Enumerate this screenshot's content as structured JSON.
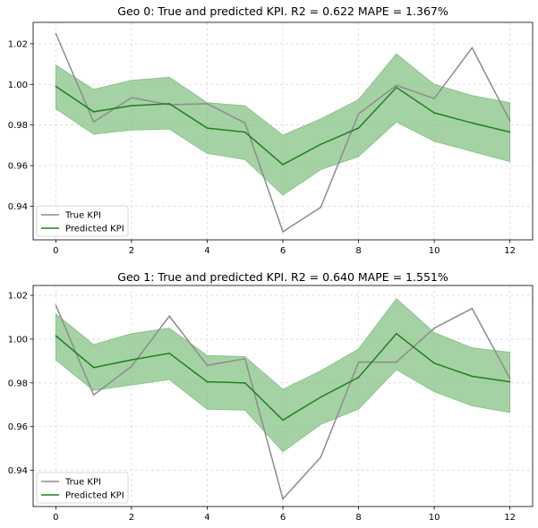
{
  "chart_data": [
    {
      "type": "line",
      "title": "Geo 0: True and predicted KPI. R2 = 0.622 MAPE = 1.367%",
      "xlabel": "",
      "ylabel": "",
      "x": [
        0,
        1,
        2,
        3,
        4,
        5,
        6,
        7,
        8,
        9,
        10,
        11,
        12
      ],
      "xlim": [
        -0.6,
        12.6
      ],
      "ylim": [
        0.9235,
        1.0305
      ],
      "xticks": [
        0,
        2,
        4,
        6,
        8,
        10,
        12
      ],
      "yticks": [
        0.94,
        0.96,
        0.98,
        1.0,
        1.02
      ],
      "ytick_labels": [
        "0.94",
        "0.96",
        "0.98",
        "1.00",
        "1.02"
      ],
      "grid": true,
      "legend_position": "lower-left",
      "series": [
        {
          "name": "True KPI",
          "color": "#8c8c8c",
          "values": [
            1.025,
            0.9815,
            0.9935,
            0.99,
            0.9905,
            0.981,
            0.9275,
            0.9395,
            0.9855,
            0.9995,
            0.993,
            1.018,
            0.982
          ]
        },
        {
          "name": "Predicted KPI",
          "color": "#1f7f1f",
          "values": [
            0.999,
            0.9865,
            0.9895,
            0.9905,
            0.9785,
            0.9765,
            0.9605,
            0.9705,
            0.9785,
            0.9985,
            0.986,
            0.981,
            0.9765
          ],
          "band_upper": [
            1.0095,
            0.9975,
            1.002,
            1.0035,
            0.991,
            0.9895,
            0.975,
            0.983,
            0.9925,
            1.015,
            1.0,
            0.9945,
            0.991
          ],
          "band_lower": [
            0.988,
            0.9755,
            0.9775,
            0.978,
            0.966,
            0.963,
            0.9455,
            0.958,
            0.9645,
            0.9815,
            0.972,
            0.967,
            0.962
          ],
          "band_color": "#7fbf7f"
        }
      ]
    },
    {
      "type": "line",
      "title": "Geo 1: True and predicted KPI. R2 = 0.640 MAPE = 1.551%",
      "xlabel": "",
      "ylabel": "",
      "x": [
        0,
        1,
        2,
        3,
        4,
        5,
        6,
        7,
        8,
        9,
        10,
        11,
        12
      ],
      "xlim": [
        -0.6,
        12.6
      ],
      "ylim": [
        0.9235,
        1.0245
      ],
      "xticks": [
        0,
        2,
        4,
        6,
        8,
        10,
        12
      ],
      "yticks": [
        0.94,
        0.96,
        0.98,
        1.0,
        1.02
      ],
      "ytick_labels": [
        "0.94",
        "0.96",
        "0.98",
        "1.00",
        "1.02"
      ],
      "grid": true,
      "legend_position": "lower-left",
      "series": [
        {
          "name": "True KPI",
          "color": "#8c8c8c",
          "values": [
            1.0155,
            0.9745,
            0.9875,
            1.0105,
            0.988,
            0.991,
            0.927,
            0.946,
            0.9895,
            0.9895,
            1.005,
            1.014,
            0.982
          ]
        },
        {
          "name": "Predicted KPI",
          "color": "#1f7f1f",
          "values": [
            1.0015,
            0.987,
            0.9905,
            0.9935,
            0.9805,
            0.98,
            0.963,
            0.9735,
            0.9825,
            1.0025,
            0.989,
            0.983,
            0.9805
          ],
          "band_upper": [
            1.0115,
            0.9975,
            1.0025,
            1.005,
            0.9925,
            0.992,
            0.977,
            0.9855,
            0.9955,
            1.0185,
            1.003,
            0.996,
            0.994
          ],
          "band_lower": [
            0.9905,
            0.9765,
            0.979,
            0.9815,
            0.968,
            0.9675,
            0.9485,
            0.961,
            0.968,
            0.986,
            0.976,
            0.9695,
            0.9665
          ],
          "band_color": "#7fbf7f"
        }
      ]
    }
  ]
}
